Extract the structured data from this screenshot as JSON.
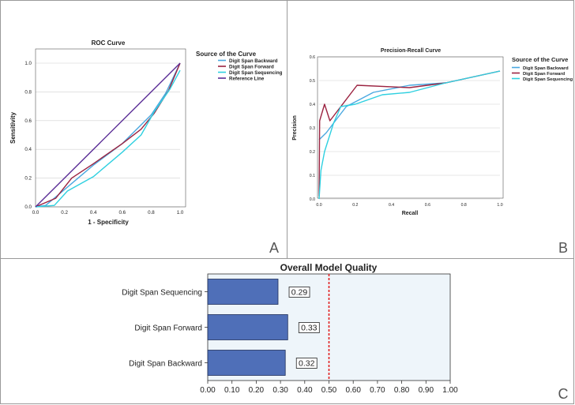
{
  "panel_letters": [
    "A",
    "B",
    "C"
  ],
  "chart_data": [
    {
      "type": "line",
      "title": "ROC Curve",
      "xlabel": "1 - Specificity",
      "ylabel": "Sensitivity",
      "xlim": [
        0,
        1
      ],
      "ylim": [
        0,
        1
      ],
      "xticks": [
        "0.0",
        "0.2",
        "0.4",
        "0.6",
        "0.8",
        "1.0"
      ],
      "yticks": [
        "0.0",
        "0.2",
        "0.4",
        "0.6",
        "0.8",
        "1.0"
      ],
      "grid": "horizontal",
      "legend_title": "Source of the Curve",
      "legend_position": "right",
      "series": [
        {
          "name": "Digit Span Backward",
          "color": "#4aa8e0",
          "points": [
            [
              0,
              0
            ],
            [
              0.07,
              0.01
            ],
            [
              0.2,
              0.12
            ],
            [
              0.4,
              0.29
            ],
            [
              0.6,
              0.44
            ],
            [
              0.8,
              0.64
            ],
            [
              0.9,
              0.79
            ],
            [
              1,
              1
            ]
          ]
        },
        {
          "name": "Digit Span Forward",
          "color": "#9b2341",
          "points": [
            [
              0,
              0
            ],
            [
              0.14,
              0.06
            ],
            [
              0.25,
              0.2
            ],
            [
              0.4,
              0.3
            ],
            [
              0.6,
              0.44
            ],
            [
              0.73,
              0.54
            ],
            [
              0.82,
              0.65
            ],
            [
              0.92,
              0.81
            ],
            [
              1,
              1
            ]
          ]
        },
        {
          "name": "Digit Span Sequencing",
          "color": "#2fd0e0",
          "points": [
            [
              0,
              0
            ],
            [
              0.13,
              0.01
            ],
            [
              0.22,
              0.11
            ],
            [
              0.4,
              0.21
            ],
            [
              0.6,
              0.38
            ],
            [
              0.73,
              0.5
            ],
            [
              0.82,
              0.66
            ],
            [
              0.93,
              0.82
            ],
            [
              1,
              0.95
            ]
          ]
        },
        {
          "name": "Reference Line",
          "color": "#5a2d96",
          "points": [
            [
              0,
              0
            ],
            [
              1,
              1
            ]
          ]
        }
      ]
    },
    {
      "type": "line",
      "title": "Precision-Recall Curve",
      "xlabel": "Recall",
      "ylabel": "Precision",
      "xlim": [
        0,
        1
      ],
      "ylim": [
        0,
        0.6
      ],
      "xticks": [
        "0.0",
        "0.2",
        "0.4",
        "0.6",
        "0.8",
        "1.0"
      ],
      "yticks": [
        "0.0",
        "0.1",
        "0.2",
        "0.3",
        "0.4",
        "0.5",
        "0.6"
      ],
      "grid": "horizontal",
      "legend_title": "Source of the Curve",
      "legend_position": "right",
      "series": [
        {
          "name": "Digit Span Backward",
          "color": "#4aa8e0",
          "points": [
            [
              0,
              0.25
            ],
            [
              0.04,
              0.28
            ],
            [
              0.1,
              0.34
            ],
            [
              0.15,
              0.39
            ],
            [
              0.3,
              0.45
            ],
            [
              0.5,
              0.48
            ],
            [
              0.7,
              0.49
            ],
            [
              1,
              0.54
            ]
          ]
        },
        {
          "name": "Digit Span Forward",
          "color": "#9b2341",
          "points": [
            [
              0,
              0.01
            ],
            [
              0.003,
              0.33
            ],
            [
              0.03,
              0.4
            ],
            [
              0.06,
              0.33
            ],
            [
              0.1,
              0.37
            ],
            [
              0.21,
              0.48
            ],
            [
              0.5,
              0.47
            ],
            [
              0.7,
              0.49
            ],
            [
              1,
              0.54
            ]
          ]
        },
        {
          "name": "Digit Span Sequencing",
          "color": "#2fd0e0",
          "points": [
            [
              0,
              0.0
            ],
            [
              0.01,
              0.12
            ],
            [
              0.03,
              0.2
            ],
            [
              0.08,
              0.32
            ],
            [
              0.12,
              0.39
            ],
            [
              0.2,
              0.4
            ],
            [
              0.35,
              0.44
            ],
            [
              0.5,
              0.45
            ],
            [
              0.7,
              0.49
            ],
            [
              1,
              0.54
            ]
          ]
        }
      ]
    },
    {
      "type": "bar",
      "orientation": "horizontal",
      "title": "Overall Model Quality",
      "categories": [
        "Digit Span Sequencing",
        "Digit Span Forward",
        "Digit Span Backward"
      ],
      "values": [
        0.29,
        0.33,
        0.32
      ],
      "value_labels": [
        "0.29",
        "0.33",
        "0.32"
      ],
      "xlim": [
        0,
        1
      ],
      "xticks": [
        "0.00",
        "0.10",
        "0.20",
        "0.30",
        "0.40",
        "0.50",
        "0.60",
        "0.70",
        "0.80",
        "0.90",
        "1.00"
      ],
      "reference_line": 0.5,
      "bar_color": "#4f6fb8",
      "reference_color": "#e02020",
      "background_color": "#eef5fa"
    }
  ]
}
